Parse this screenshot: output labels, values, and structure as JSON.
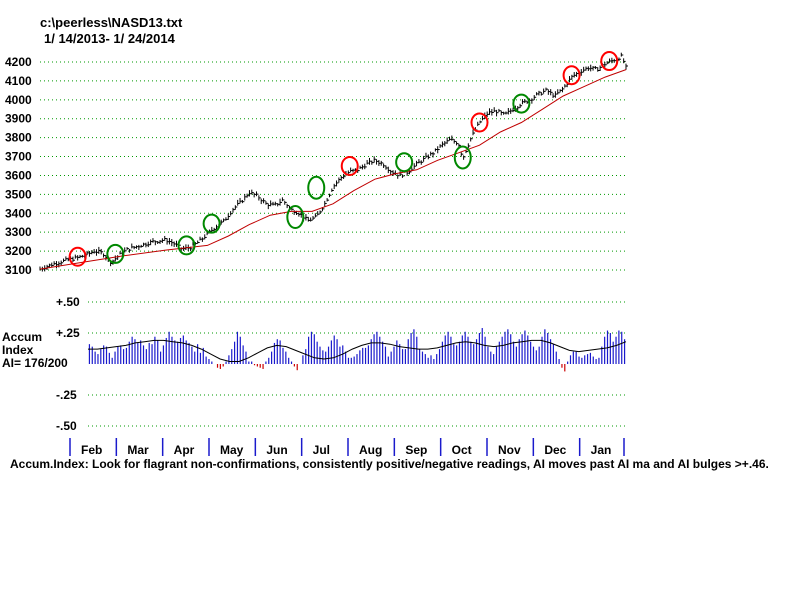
{
  "header": {
    "file_path": "c:\\peerless\\NASD13.txt",
    "date_range": "1/ 14/2013- 1/ 24/2014"
  },
  "accum_label": {
    "line1": "Accum",
    "line2": "Index",
    "line3": "AI= 176/200"
  },
  "footnote": "Accum.Index: Look for flagrant non-confirmations, consistently positive/negative readings, AI moves past AI ma and AI bulges >+.46.",
  "colors": {
    "price_bars": "#000000",
    "moving_average": "#c00000",
    "grid": "#009900",
    "accum_positive": "#1a1acc",
    "accum_negative": "#cc0000",
    "circle_red": "#ff0000",
    "circle_green": "#008800",
    "month_ticks": "#1a1acc"
  },
  "chart_data": [
    {
      "type": "ohlc-bar",
      "title": "",
      "ylim": [
        3100,
        4200
      ],
      "yticks": [
        "3100",
        "3200",
        "3300",
        "3400",
        "3500",
        "3600",
        "3700",
        "3800",
        "3900",
        "4000",
        "4100",
        "4200"
      ],
      "grid": true,
      "series": [
        {
          "name": "",
          "kind": "price",
          "points": [
            [
              0,
              3105
            ],
            [
              0.3,
              3130
            ],
            [
              0.6,
              3150
            ],
            [
              0.9,
              3165
            ],
            [
              1.1,
              3180
            ],
            [
              1.3,
              3200
            ],
            [
              1.5,
              3190
            ],
            [
              1.7,
              3140
            ],
            [
              1.9,
              3180
            ],
            [
              2.1,
              3210
            ],
            [
              2.4,
              3230
            ],
            [
              2.7,
              3250
            ],
            [
              3.0,
              3260
            ],
            [
              3.2,
              3240
            ],
            [
              3.4,
              3210
            ],
            [
              3.6,
              3220
            ],
            [
              3.8,
              3250
            ],
            [
              4.0,
              3290
            ],
            [
              4.2,
              3330
            ],
            [
              4.4,
              3360
            ],
            [
              4.6,
              3420
            ],
            [
              4.8,
              3460
            ],
            [
              5.0,
              3510
            ],
            [
              5.2,
              3490
            ],
            [
              5.4,
              3450
            ],
            [
              5.6,
              3440
            ],
            [
              5.8,
              3470
            ],
            [
              6.0,
              3420
            ],
            [
              6.2,
              3400
            ],
            [
              6.4,
              3360
            ],
            [
              6.6,
              3380
            ],
            [
              6.8,
              3450
            ],
            [
              7.0,
              3540
            ],
            [
              7.2,
              3590
            ],
            [
              7.4,
              3620
            ],
            [
              7.6,
              3630
            ],
            [
              7.8,
              3660
            ],
            [
              8.0,
              3680
            ],
            [
              8.2,
              3660
            ],
            [
              8.4,
              3620
            ],
            [
              8.6,
              3600
            ],
            [
              8.8,
              3620
            ],
            [
              9.0,
              3660
            ],
            [
              9.2,
              3690
            ],
            [
              9.4,
              3720
            ],
            [
              9.6,
              3760
            ],
            [
              9.8,
              3790
            ],
            [
              10.0,
              3770
            ],
            [
              10.1,
              3690
            ],
            [
              10.3,
              3800
            ],
            [
              10.5,
              3880
            ],
            [
              10.7,
              3930
            ],
            [
              10.9,
              3940
            ],
            [
              11.1,
              3920
            ],
            [
              11.3,
              3950
            ],
            [
              11.5,
              3980
            ],
            [
              11.7,
              4000
            ],
            [
              11.9,
              4030
            ],
            [
              12.1,
              4050
            ],
            [
              12.3,
              4020
            ],
            [
              12.5,
              4060
            ],
            [
              12.7,
              4120
            ],
            [
              12.9,
              4150
            ],
            [
              13.1,
              4170
            ],
            [
              13.3,
              4160
            ],
            [
              13.5,
              4190
            ],
            [
              13.7,
              4210
            ],
            [
              13.9,
              4230
            ],
            [
              14.0,
              4170
            ]
          ]
        },
        {
          "name": "",
          "kind": "moving-average",
          "points": [
            [
              0,
              3105
            ],
            [
              1,
              3140
            ],
            [
              2,
              3175
            ],
            [
              3,
              3205
            ],
            [
              4,
              3230
            ],
            [
              4.5,
              3280
            ],
            [
              5,
              3340
            ],
            [
              5.5,
              3390
            ],
            [
              6,
              3410
            ],
            [
              6.5,
              3410
            ],
            [
              7,
              3450
            ],
            [
              7.5,
              3520
            ],
            [
              8,
              3580
            ],
            [
              8.5,
              3610
            ],
            [
              9,
              3630
            ],
            [
              9.5,
              3680
            ],
            [
              10,
              3720
            ],
            [
              10.5,
              3760
            ],
            [
              11,
              3830
            ],
            [
              11.5,
              3880
            ],
            [
              12,
              3950
            ],
            [
              12.5,
              4020
            ],
            [
              13,
              4070
            ],
            [
              13.5,
              4120
            ],
            [
              14,
              4160
            ]
          ]
        }
      ],
      "signals": [
        {
          "x": 0.9,
          "y": 3170,
          "color": "red"
        },
        {
          "x": 1.8,
          "y": 3185,
          "color": "green"
        },
        {
          "x": 3.5,
          "y": 3230,
          "color": "green"
        },
        {
          "x": 4.1,
          "y": 3345,
          "color": "green"
        },
        {
          "x": 6.1,
          "y": 3380,
          "color": "green"
        },
        {
          "x": 6.6,
          "y": 3535,
          "color": "green"
        },
        {
          "x": 7.4,
          "y": 3650,
          "color": "red"
        },
        {
          "x": 8.7,
          "y": 3670,
          "color": "green"
        },
        {
          "x": 10.1,
          "y": 3695,
          "color": "green"
        },
        {
          "x": 10.5,
          "y": 3880,
          "color": "red"
        },
        {
          "x": 11.5,
          "y": 3980,
          "color": "green"
        },
        {
          "x": 12.7,
          "y": 4130,
          "color": "red"
        },
        {
          "x": 13.6,
          "y": 4205,
          "color": "red"
        }
      ]
    },
    {
      "type": "bar",
      "ylim": [
        -0.5,
        0.5
      ],
      "yticks": [
        "+.50",
        "+.25",
        "-.25",
        "-.50"
      ],
      "grid": true,
      "accum_index": [
        0.16,
        0.14,
        0.1,
        0.08,
        0.12,
        0.15,
        0.14,
        0.09,
        0.05,
        0.1,
        0.14,
        0.15,
        0.12,
        0.13,
        0.18,
        0.22,
        0.2,
        0.17,
        0.19,
        0.15,
        0.12,
        0.17,
        0.16,
        0.22,
        0.19,
        0.1,
        0.15,
        0.21,
        0.26,
        0.22,
        0.19,
        0.18,
        0.21,
        0.23,
        0.19,
        0.17,
        0.14,
        0.1,
        0.16,
        0.09,
        0.13,
        0.06,
        0.04,
        0.02,
        0.0,
        -0.03,
        -0.04,
        -0.02,
        0.02,
        0.07,
        0.12,
        0.18,
        0.26,
        0.22,
        0.15,
        0.1,
        0.02,
        0.02,
        -0.01,
        -0.02,
        -0.03,
        -0.04,
        0.02,
        0.05,
        0.1,
        0.17,
        0.2,
        0.19,
        0.13,
        0.1,
        0.05,
        0.02,
        -0.02,
        -0.05,
        0.0,
        0.07,
        0.12,
        0.22,
        0.26,
        0.24,
        0.18,
        0.14,
        0.11,
        0.1,
        0.14,
        0.19,
        0.23,
        0.2,
        0.14,
        0.15,
        0.1,
        0.05,
        0.05,
        0.06,
        0.08,
        0.11,
        0.13,
        0.13,
        0.15,
        0.2,
        0.24,
        0.26,
        0.22,
        0.18,
        0.14,
        0.06,
        0.1,
        0.14,
        0.19,
        0.16,
        0.12,
        0.12,
        0.2,
        0.25,
        0.28,
        0.22,
        0.12,
        0.1,
        0.08,
        0.05,
        0.07,
        0.04,
        0.08,
        0.12,
        0.18,
        0.23,
        0.26,
        0.22,
        0.16,
        0.15,
        0.18,
        0.23,
        0.26,
        0.22,
        0.18,
        0.16,
        0.2,
        0.25,
        0.29,
        0.22,
        0.14,
        0.1,
        0.08,
        0.14,
        0.18,
        0.22,
        0.26,
        0.28,
        0.24,
        0.18,
        0.14,
        0.2,
        0.24,
        0.27,
        0.23,
        0.18,
        0.14,
        0.11,
        0.14,
        0.22,
        0.28,
        0.25,
        0.2,
        0.16,
        0.1,
        0.04,
        -0.03,
        -0.06,
        0.02,
        0.07,
        0.1,
        0.1,
        0.06,
        0.05,
        0.07,
        0.08,
        0.09,
        0.06,
        0.04,
        0.05,
        0.14,
        0.22,
        0.27,
        0.25,
        0.18,
        0.22,
        0.27,
        0.26,
        0.2
      ],
      "accum_ma": [
        0.12,
        0.12,
        0.13,
        0.14,
        0.15,
        0.17,
        0.18,
        0.19,
        0.19,
        0.18,
        0.17,
        0.15,
        0.12,
        0.08,
        0.04,
        0.02,
        0.02,
        0.05,
        0.09,
        0.13,
        0.15,
        0.14,
        0.11,
        0.08,
        0.05,
        0.04,
        0.05,
        0.08,
        0.12,
        0.15,
        0.17,
        0.17,
        0.16,
        0.14,
        0.13,
        0.12,
        0.12,
        0.13,
        0.15,
        0.17,
        0.18,
        0.17,
        0.15,
        0.14,
        0.15,
        0.17,
        0.18,
        0.19,
        0.19,
        0.17,
        0.14,
        0.11,
        0.1,
        0.11,
        0.12,
        0.13,
        0.15,
        0.18
      ]
    }
  ],
  "months": [
    "Feb",
    "Mar",
    "Apr",
    "May",
    "Jun",
    "Jul",
    "Aug",
    "Sep",
    "Oct",
    "Nov",
    "Dec",
    "Jan"
  ]
}
